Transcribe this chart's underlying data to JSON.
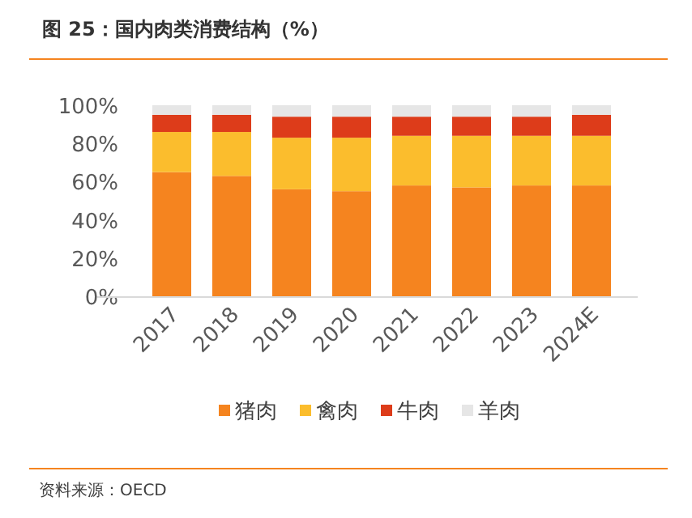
{
  "chart_data": {
    "type": "bar",
    "stacked": true,
    "title": "图 25：国内肉类消费结构（%）",
    "categories": [
      "2017",
      "2018",
      "2019",
      "2020",
      "2021",
      "2022",
      "2023",
      "2024E"
    ],
    "series": [
      {
        "name": "猪肉",
        "color": "#f5841f",
        "values": [
          65,
          63,
          56,
          55,
          58,
          57,
          58,
          58
        ]
      },
      {
        "name": "禽肉",
        "color": "#fbbd2d",
        "values": [
          21,
          23,
          27,
          28,
          26,
          27,
          26,
          26
        ]
      },
      {
        "name": "牛肉",
        "color": "#dd3c1a",
        "values": [
          9,
          9,
          11,
          11,
          10,
          10,
          10,
          11
        ]
      },
      {
        "name": "羊肉",
        "color": "#e6e6e6",
        "values": [
          5,
          5,
          6,
          6,
          6,
          6,
          6,
          5
        ]
      }
    ],
    "ylim": [
      0,
      100
    ],
    "yticks": [
      {
        "value": 0,
        "label": "0%"
      },
      {
        "value": 20,
        "label": "20%"
      },
      {
        "value": 40,
        "label": "40%"
      },
      {
        "value": 60,
        "label": "60%"
      },
      {
        "value": 80,
        "label": "80%"
      },
      {
        "value": 100,
        "label": "100%"
      }
    ],
    "grid": false,
    "legend": "bottom",
    "annotations": [
      "资料来源：OECD"
    ]
  }
}
